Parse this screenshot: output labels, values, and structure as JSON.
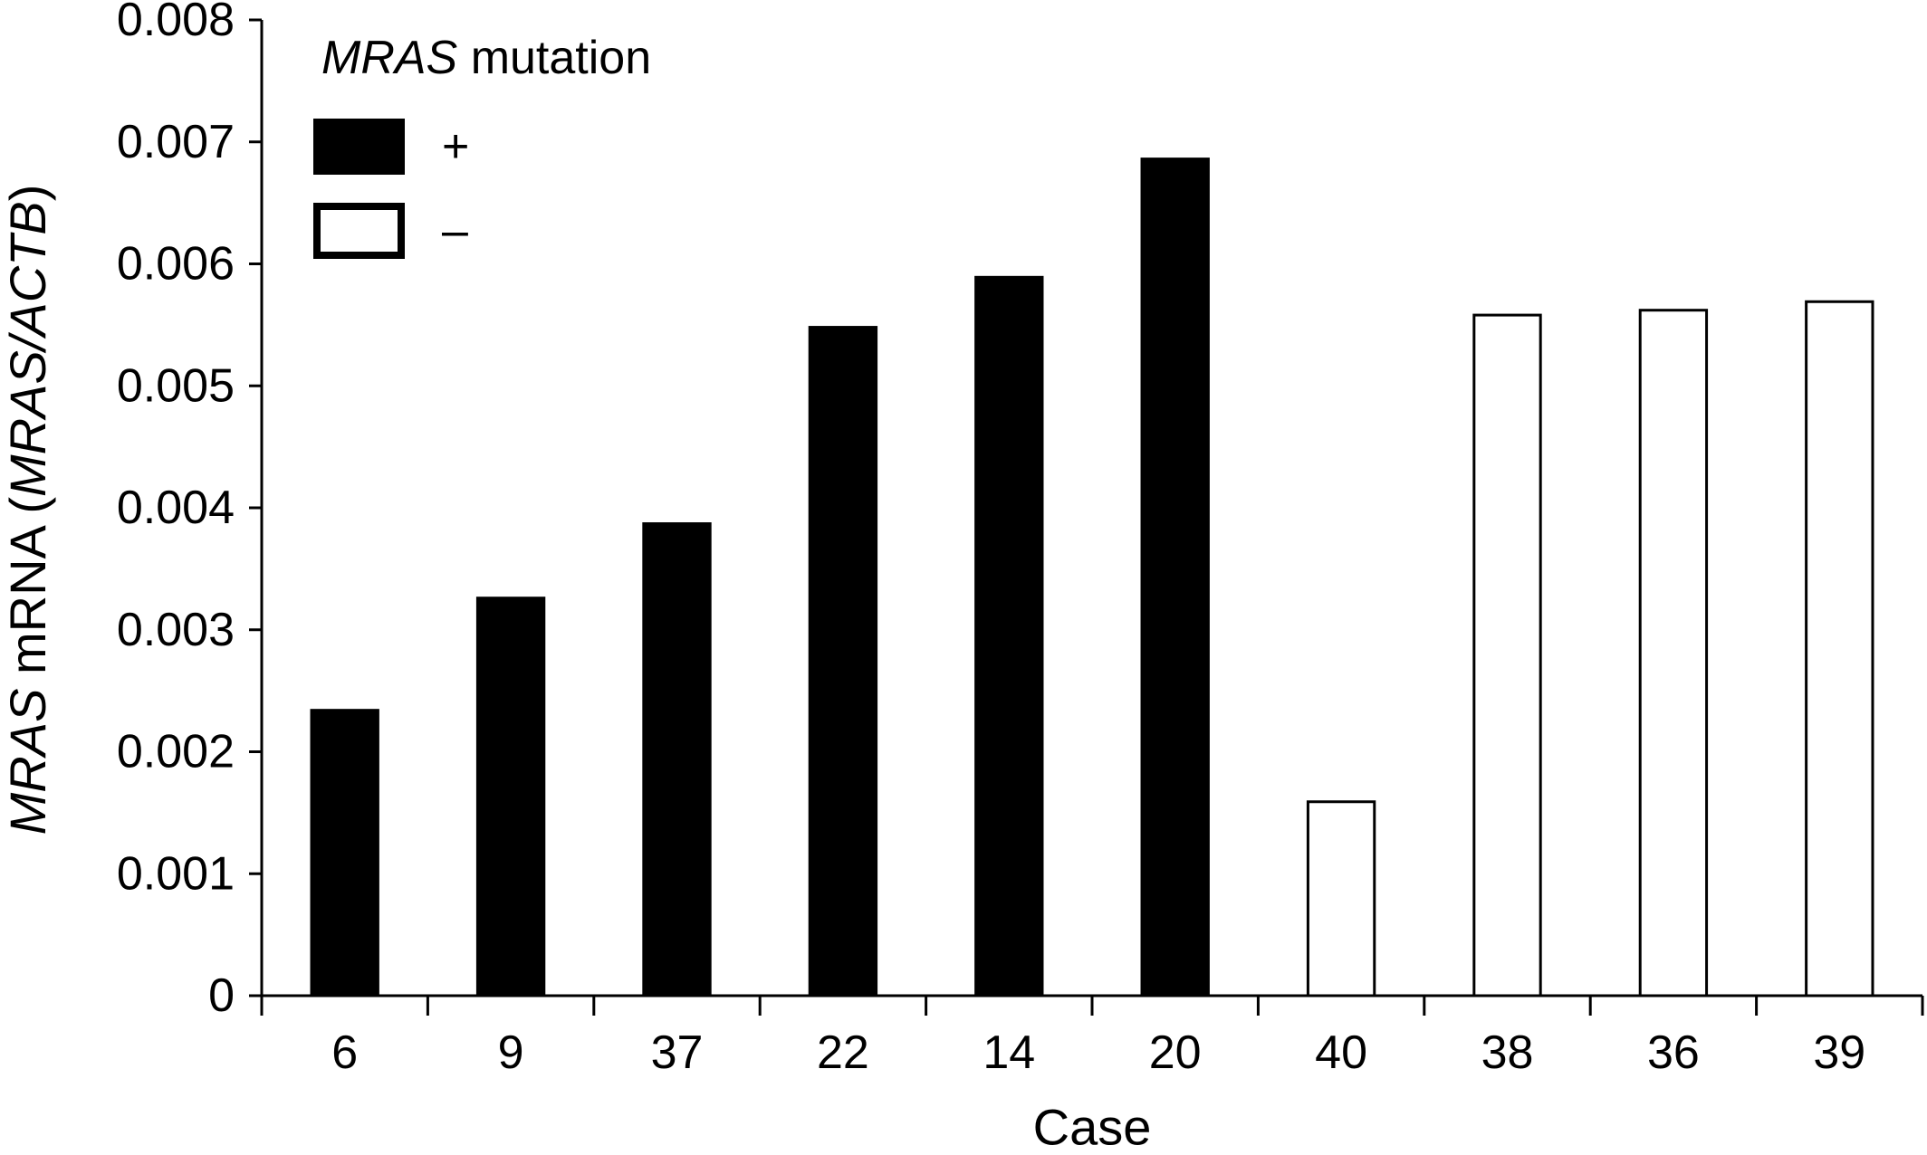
{
  "chart_data": {
    "type": "bar",
    "categories": [
      "6",
      "9",
      "37",
      "22",
      "14",
      "20",
      "40",
      "38",
      "36",
      "39"
    ],
    "values": [
      0.00234,
      0.00326,
      0.00387,
      0.00548,
      0.00589,
      0.00686,
      0.00159,
      0.00558,
      0.00562,
      0.00569
    ],
    "mutation": [
      "+",
      "+",
      "+",
      "+",
      "+",
      "+",
      "–",
      "–",
      "–",
      "–"
    ],
    "xlabel": "Case",
    "ylabel_parts": [
      {
        "text": "MRAS",
        "italic": true
      },
      {
        "text": " mRNA (",
        "italic": false
      },
      {
        "text": "MRAS/ACTB",
        "italic": true
      },
      {
        "text": ")",
        "italic": false
      }
    ],
    "ylim": [
      0,
      0.008
    ],
    "yticks": [
      "0",
      "0.001",
      "0.002",
      "0.003",
      "0.004",
      "0.005",
      "0.006",
      "0.007",
      "0.008"
    ],
    "grid": false,
    "legend": {
      "position": "top-left",
      "title_parts": [
        {
          "text": "MRAS",
          "italic": true
        },
        {
          "text": " mutation",
          "italic": false
        }
      ],
      "entries": [
        {
          "label": "+",
          "fill": "#000000"
        },
        {
          "label": "–",
          "fill": "#ffffff"
        }
      ]
    },
    "colors": {
      "positive": "#000000",
      "negative": "#ffffff",
      "stroke": "#000000"
    }
  }
}
